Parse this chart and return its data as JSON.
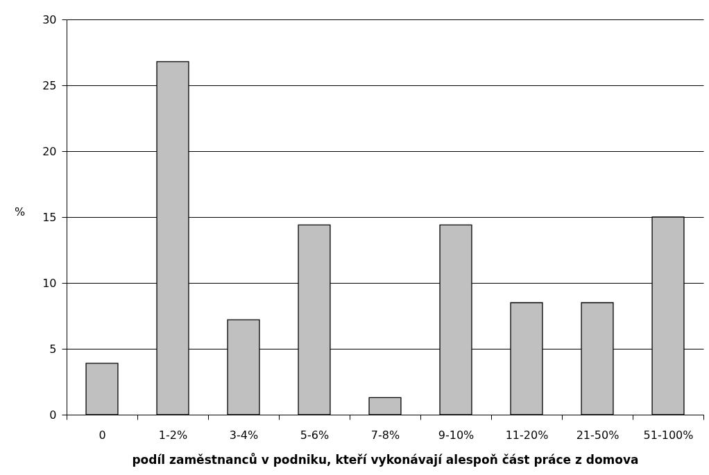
{
  "chart_data": {
    "type": "bar",
    "xlabel": "podíl zaměstnanců v podniku, kteří vykonávají alespoň část práce z domova",
    "ylabel": "%",
    "categories": [
      "0",
      "1-2%",
      "3-4%",
      "5-6%",
      "7-8%",
      "9-10%",
      "11-20%",
      "21-50%",
      "51-100%"
    ],
    "values": [
      3.9,
      26.8,
      7.2,
      14.4,
      1.3,
      14.4,
      8.5,
      8.5,
      15.0
    ],
    "color": "#c0c0c0",
    "ylim": [
      0,
      30
    ],
    "yticks": [
      0,
      5,
      10,
      15,
      20,
      25,
      30
    ],
    "grid": "y"
  }
}
